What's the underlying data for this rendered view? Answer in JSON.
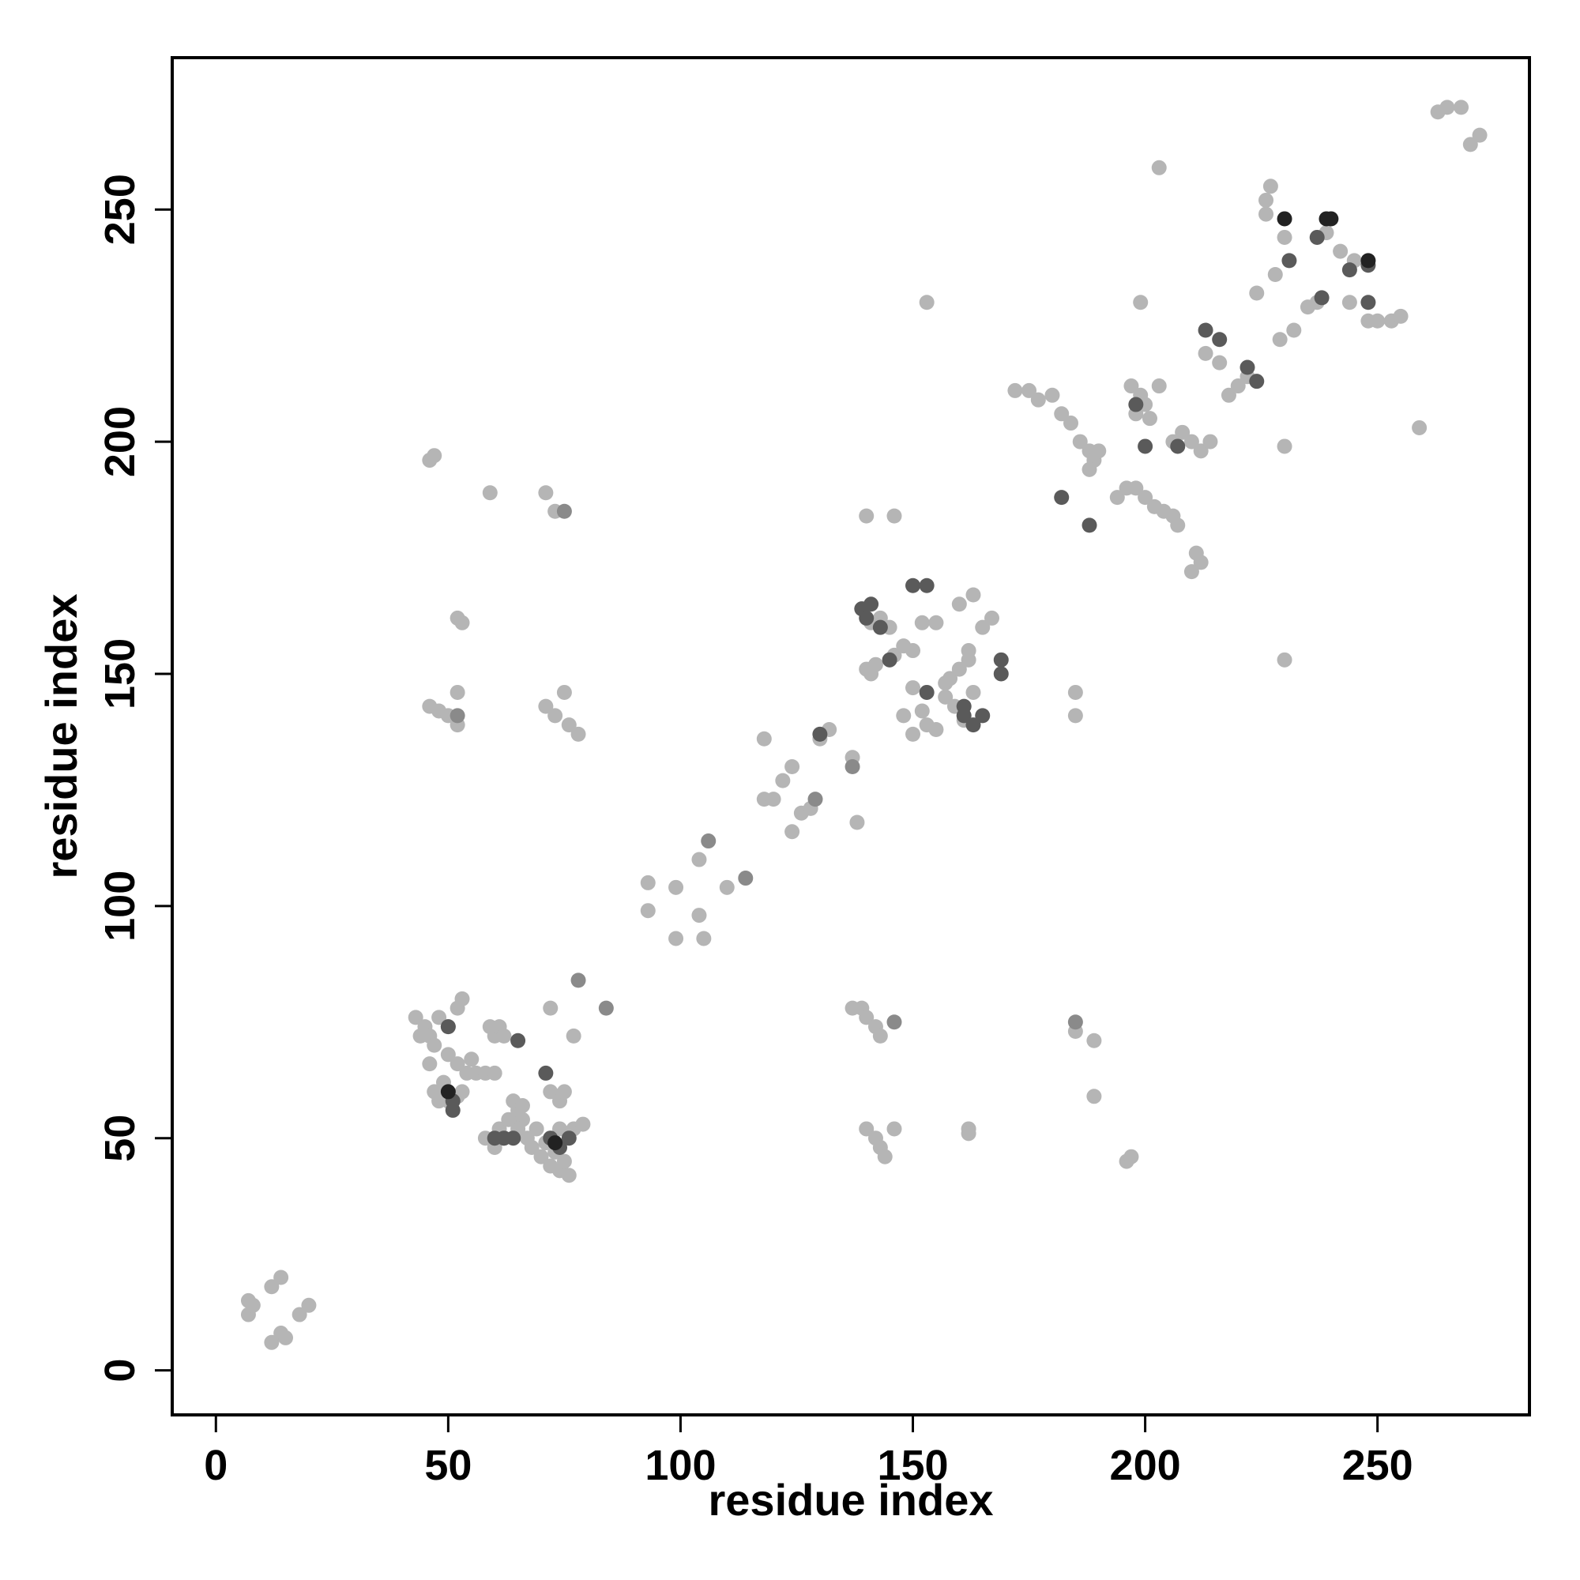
{
  "chart_data": {
    "type": "scatter",
    "xlabel": "residue index",
    "ylabel": "residue index",
    "xlim": [
      -9.4,
      282.7
    ],
    "ylim": [
      -9.6,
      282.7
    ],
    "xticks": [
      0,
      50,
      100,
      150,
      200,
      250
    ],
    "yticks": [
      0,
      50,
      100,
      150,
      200,
      250
    ],
    "grid": false,
    "series": [
      {
        "color": "#b5b5b5",
        "x": [
          7,
          7,
          8,
          12,
          14,
          12,
          14,
          15,
          18,
          20,
          43,
          45,
          46,
          47,
          48,
          50,
          50,
          52,
          52,
          53,
          54,
          55,
          56,
          58,
          60,
          59,
          60,
          61,
          62,
          47,
          48,
          50,
          52,
          53,
          58,
          60,
          61,
          62,
          64,
          65,
          66,
          65,
          67,
          68,
          70,
          72,
          74,
          75,
          76,
          72,
          74,
          75,
          72,
          74,
          77,
          79,
          72,
          77,
          44,
          46,
          49,
          63,
          66,
          69,
          71,
          73,
          46,
          47,
          59,
          71,
          73,
          52,
          53,
          46,
          48,
          50,
          52,
          52,
          71,
          73,
          75,
          76,
          78,
          93,
          93,
          99,
          99,
          104,
          105,
          104,
          110,
          118,
          118,
          120,
          122,
          124,
          124,
          126,
          128,
          130,
          132,
          137,
          138,
          140,
          141,
          142,
          141,
          143,
          145,
          146,
          148,
          150,
          152,
          155,
          150,
          152,
          153,
          155,
          148,
          150,
          157,
          158,
          160,
          162,
          162,
          160,
          163,
          165,
          167,
          157,
          159,
          161,
          163,
          146,
          140,
          137,
          139,
          140,
          142,
          143,
          140,
          142,
          143,
          146,
          144,
          162,
          162,
          185,
          189,
          189,
          196,
          197,
          185,
          185,
          153,
          230,
          230,
          203,
          259,
          199,
          172,
          175,
          177,
          180,
          182,
          184,
          186,
          188,
          189,
          190,
          188,
          198,
          200,
          202,
          204,
          206,
          207,
          197,
          199,
          200,
          201,
          198,
          203,
          206,
          208,
          210,
          212,
          211,
          212,
          210,
          194,
          196,
          214,
          213,
          216,
          218,
          220,
          222,
          224,
          226,
          227,
          228,
          230,
          229,
          232,
          235,
          237,
          239,
          242,
          244,
          245,
          248,
          250,
          253,
          255,
          263,
          265,
          268,
          270,
          272,
          226
        ],
        "y": [
          12,
          15,
          14,
          18,
          20,
          6,
          8,
          7,
          12,
          14,
          76,
          74,
          72,
          70,
          76,
          74,
          68,
          66,
          78,
          80,
          64,
          67,
          64,
          64,
          64,
          74,
          72,
          74,
          72,
          60,
          58,
          58,
          59,
          60,
          50,
          48,
          52,
          50,
          58,
          56,
          54,
          52,
          50,
          48,
          46,
          44,
          43,
          45,
          42,
          60,
          58,
          60,
          50,
          52,
          52,
          53,
          78,
          72,
          72,
          66,
          62,
          54,
          57,
          52,
          49,
          47,
          196,
          197,
          189,
          189,
          185,
          162,
          161,
          143,
          142,
          141,
          146,
          139,
          143,
          141,
          146,
          139,
          137,
          105,
          99,
          104,
          93,
          98,
          93,
          110,
          104,
          136,
          123,
          123,
          127,
          130,
          116,
          120,
          121,
          136,
          138,
          132,
          118,
          151,
          150,
          152,
          161,
          162,
          160,
          154,
          156,
          155,
          161,
          161,
          147,
          142,
          139,
          138,
          141,
          137,
          148,
          149,
          151,
          153,
          155,
          165,
          167,
          160,
          162,
          145,
          143,
          140,
          146,
          184,
          184,
          78,
          78,
          76,
          74,
          72,
          52,
          50,
          48,
          52,
          46,
          52,
          51,
          73,
          71,
          59,
          45,
          46,
          146,
          141,
          230,
          153,
          199,
          259,
          203,
          230,
          211,
          211,
          209,
          210,
          206,
          204,
          200,
          198,
          196,
          198,
          194,
          190,
          188,
          186,
          185,
          184,
          182,
          212,
          210,
          208,
          205,
          206,
          212,
          200,
          202,
          200,
          198,
          176,
          174,
          172,
          188,
          190,
          200,
          219,
          217,
          210,
          212,
          214,
          232,
          249,
          255,
          236,
          244,
          222,
          224,
          229,
          230,
          245,
          241,
          230,
          239,
          226,
          226,
          226,
          227,
          271,
          272,
          272,
          264,
          266,
          252
        ]
      },
      {
        "color": "#8a8a8a",
        "x": [
          78,
          84,
          75,
          52,
          106,
          114,
          129,
          137,
          146,
          185
        ],
        "y": [
          84,
          78,
          185,
          141,
          114,
          106,
          123,
          130,
          75,
          75
        ]
      },
      {
        "color": "#5a5a5a",
        "x": [
          50,
          51,
          51,
          60,
          62,
          64,
          65,
          71,
          72,
          74,
          76,
          130,
          139,
          140,
          141,
          143,
          150,
          153,
          153,
          161,
          161,
          163,
          165,
          169,
          169,
          145,
          182,
          188,
          198,
          200,
          207,
          213,
          216,
          222,
          224,
          231,
          238,
          237,
          244,
          248,
          248
        ],
        "y": [
          74,
          58,
          56,
          50,
          50,
          50,
          71,
          64,
          50,
          48,
          50,
          137,
          164,
          162,
          165,
          160,
          169,
          146,
          169,
          143,
          141,
          139,
          141,
          150,
          153,
          153,
          188,
          182,
          208,
          199,
          199,
          224,
          222,
          216,
          213,
          239,
          231,
          244,
          237,
          238,
          230
        ]
      },
      {
        "color": "#222222",
        "x": [
          50,
          73,
          230,
          239,
          240,
          248
        ],
        "y": [
          60,
          49,
          248,
          248,
          248,
          239
        ]
      }
    ]
  }
}
